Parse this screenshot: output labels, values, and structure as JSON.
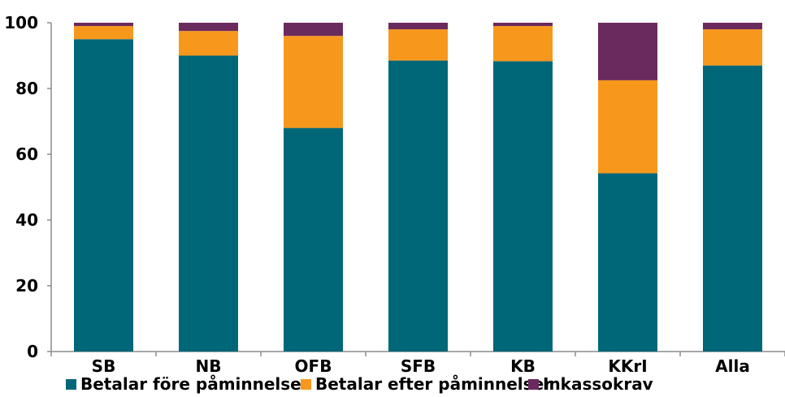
{
  "chart_data": {
    "type": "bar",
    "stacked": true,
    "categories": [
      "SB",
      "NB",
      "OFB",
      "SFB",
      "KB",
      "KKrI",
      "Alla"
    ],
    "series": [
      {
        "name": "Betalar före påminnelse",
        "color": "#006778",
        "values": [
          95,
          90,
          68,
          88.5,
          88.3,
          54.2,
          87
        ]
      },
      {
        "name": "Betalar efter påminnelser",
        "color": "#F7981D",
        "values": [
          4,
          7.5,
          28,
          9.5,
          10.7,
          28.3,
          11
        ]
      },
      {
        "name": "Inkassokrav",
        "color": "#6B2A5E",
        "values": [
          1,
          2.5,
          4,
          2,
          1,
          17.5,
          2
        ]
      }
    ],
    "ylim": [
      0,
      100
    ],
    "yticks": [
      0,
      20,
      40,
      60,
      80,
      100
    ],
    "ytick_labels": [
      "0",
      "20",
      "40",
      "60",
      "80",
      "100"
    ],
    "legend_position": "bottom",
    "grid": false
  }
}
